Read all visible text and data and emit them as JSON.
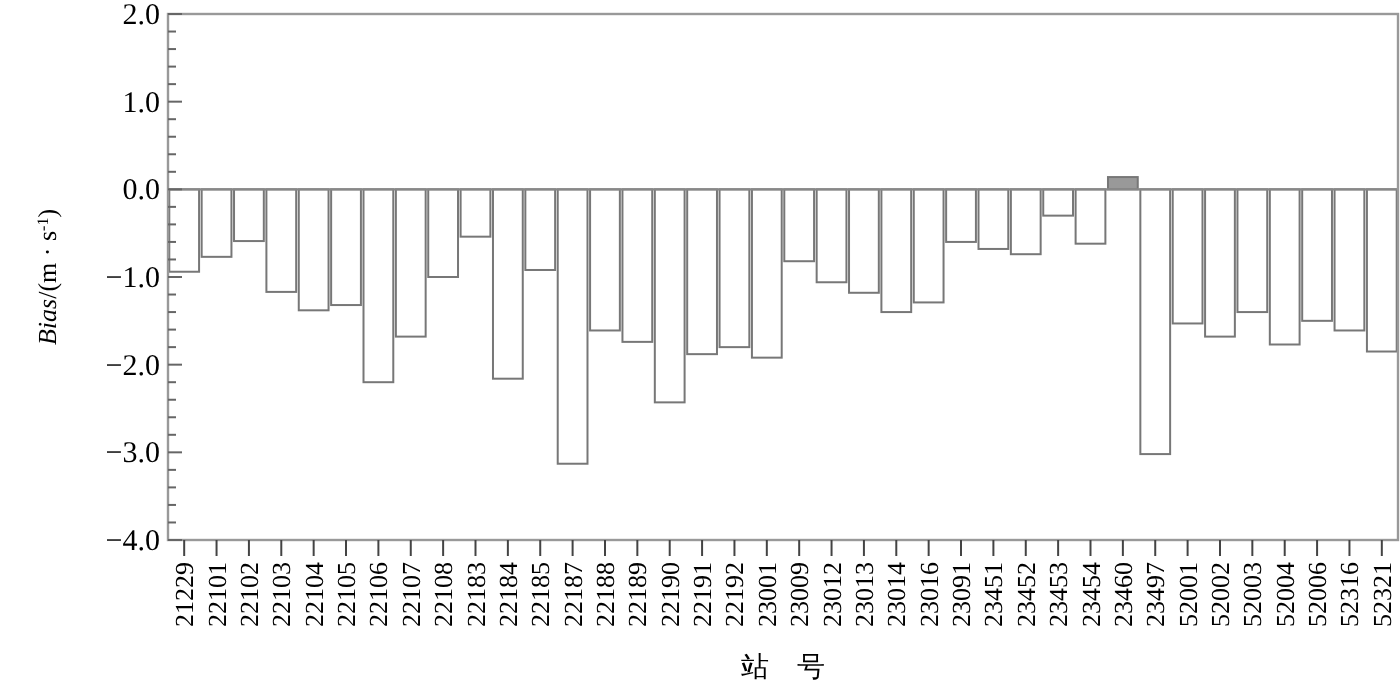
{
  "chart_data": {
    "type": "bar",
    "xlabel": "站 号",
    "ylabel": "*Bias*/(m · s$^{-1}$)",
    "categories": [
      "21229",
      "22101",
      "22102",
      "22103",
      "22104",
      "22105",
      "22106",
      "22107",
      "22108",
      "22183",
      "22184",
      "22185",
      "22187",
      "22188",
      "22189",
      "22190",
      "22191",
      "22192",
      "23001",
      "23009",
      "23012",
      "23013",
      "23014",
      "23016",
      "23091",
      "23451",
      "23452",
      "23453",
      "23454",
      "23460",
      "23497",
      "52001",
      "52002",
      "52003",
      "52004",
      "52006",
      "52316",
      "52321"
    ],
    "values": [
      -0.94,
      -0.77,
      -0.59,
      -1.17,
      -1.38,
      -1.32,
      -2.2,
      -1.68,
      -1.0,
      -0.54,
      -2.16,
      -0.92,
      -3.13,
      -1.61,
      -1.74,
      -2.43,
      -1.88,
      -1.8,
      -1.92,
      -0.82,
      -1.06,
      -1.18,
      -1.4,
      -1.29,
      -0.6,
      -0.68,
      -0.74,
      -0.3,
      -0.62,
      0.14,
      -3.02,
      -1.53,
      -1.68,
      -1.4,
      -1.77,
      -1.5,
      -1.61,
      -1.85
    ],
    "colors": [
      "#ffffff",
      "#ffffff",
      "#ffffff",
      "#ffffff",
      "#ffffff",
      "#ffffff",
      "#ffffff",
      "#ffffff",
      "#ffffff",
      "#ffffff",
      "#ffffff",
      "#ffffff",
      "#ffffff",
      "#ffffff",
      "#ffffff",
      "#ffffff",
      "#ffffff",
      "#ffffff",
      "#ffffff",
      "#ffffff",
      "#ffffff",
      "#ffffff",
      "#ffffff",
      "#ffffff",
      "#ffffff",
      "#ffffff",
      "#ffffff",
      "#ffffff",
      "#ffffff",
      "#999999",
      "#ffffff",
      "#ffffff",
      "#ffffff",
      "#ffffff",
      "#ffffff",
      "#ffffff",
      "#ffffff",
      "#ffffff"
    ],
    "ylim": [
      -4,
      2
    ],
    "yticks": [
      {
        "value": -4,
        "label": "−4.0"
      },
      {
        "value": -3.8,
        "label": null
      },
      {
        "value": -3.6,
        "label": null
      },
      {
        "value": -3.4,
        "label": null
      },
      {
        "value": -3.2,
        "label": null
      },
      {
        "value": -3,
        "label": "−3.0"
      },
      {
        "value": -2.8,
        "label": null
      },
      {
        "value": -2.6,
        "label": null
      },
      {
        "value": -2.4,
        "label": null
      },
      {
        "value": -2.2,
        "label": null
      },
      {
        "value": -2,
        "label": "−2.0"
      },
      {
        "value": -1.8,
        "label": null
      },
      {
        "value": -1.6,
        "label": null
      },
      {
        "value": -1.4,
        "label": null
      },
      {
        "value": -1.2,
        "label": null
      },
      {
        "value": -1,
        "label": "−1.0"
      },
      {
        "value": -0.8,
        "label": null
      },
      {
        "value": -0.6,
        "label": null
      },
      {
        "value": -0.4,
        "label": null
      },
      {
        "value": -0.2,
        "label": null
      },
      {
        "value": 0,
        "label": "0.0"
      },
      {
        "value": 0.2,
        "label": null
      },
      {
        "value": 0.4,
        "label": null
      },
      {
        "value": 0.6,
        "label": null
      },
      {
        "value": 0.8,
        "label": null
      },
      {
        "value": 1,
        "label": "1.0"
      },
      {
        "value": 1.2,
        "label": null
      },
      {
        "value": 1.4,
        "label": null
      },
      {
        "value": 1.6,
        "label": null
      },
      {
        "value": 1.8,
        "label": null
      },
      {
        "value": 2,
        "label": "2.0"
      }
    ],
    "ref_lines": [
      {
        "axis": "y",
        "value": 0,
        "color": "#888888"
      }
    ],
    "grid": false
  }
}
